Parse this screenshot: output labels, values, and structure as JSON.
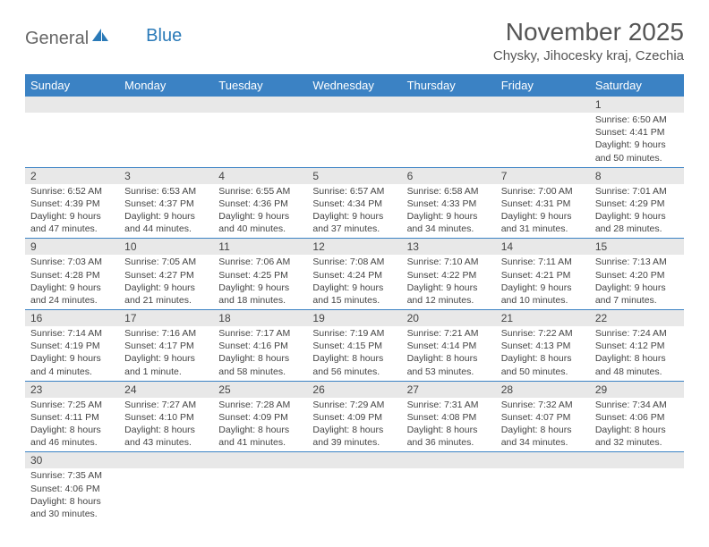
{
  "logo": {
    "general": "General",
    "blue": "Blue"
  },
  "title": "November 2025",
  "location": "Chysky, Jihocesky kraj, Czechia",
  "colors": {
    "header_bg": "#3b82c4",
    "header_text": "#ffffff",
    "daynum_bg": "#e8e8e8",
    "border": "#3b82c4",
    "text": "#444444"
  },
  "weekdays": [
    "Sunday",
    "Monday",
    "Tuesday",
    "Wednesday",
    "Thursday",
    "Friday",
    "Saturday"
  ],
  "weeks": [
    [
      null,
      null,
      null,
      null,
      null,
      null,
      {
        "n": "1",
        "sr": "Sunrise: 6:50 AM",
        "ss": "Sunset: 4:41 PM",
        "dl1": "Daylight: 9 hours",
        "dl2": "and 50 minutes."
      }
    ],
    [
      {
        "n": "2",
        "sr": "Sunrise: 6:52 AM",
        "ss": "Sunset: 4:39 PM",
        "dl1": "Daylight: 9 hours",
        "dl2": "and 47 minutes."
      },
      {
        "n": "3",
        "sr": "Sunrise: 6:53 AM",
        "ss": "Sunset: 4:37 PM",
        "dl1": "Daylight: 9 hours",
        "dl2": "and 44 minutes."
      },
      {
        "n": "4",
        "sr": "Sunrise: 6:55 AM",
        "ss": "Sunset: 4:36 PM",
        "dl1": "Daylight: 9 hours",
        "dl2": "and 40 minutes."
      },
      {
        "n": "5",
        "sr": "Sunrise: 6:57 AM",
        "ss": "Sunset: 4:34 PM",
        "dl1": "Daylight: 9 hours",
        "dl2": "and 37 minutes."
      },
      {
        "n": "6",
        "sr": "Sunrise: 6:58 AM",
        "ss": "Sunset: 4:33 PM",
        "dl1": "Daylight: 9 hours",
        "dl2": "and 34 minutes."
      },
      {
        "n": "7",
        "sr": "Sunrise: 7:00 AM",
        "ss": "Sunset: 4:31 PM",
        "dl1": "Daylight: 9 hours",
        "dl2": "and 31 minutes."
      },
      {
        "n": "8",
        "sr": "Sunrise: 7:01 AM",
        "ss": "Sunset: 4:29 PM",
        "dl1": "Daylight: 9 hours",
        "dl2": "and 28 minutes."
      }
    ],
    [
      {
        "n": "9",
        "sr": "Sunrise: 7:03 AM",
        "ss": "Sunset: 4:28 PM",
        "dl1": "Daylight: 9 hours",
        "dl2": "and 24 minutes."
      },
      {
        "n": "10",
        "sr": "Sunrise: 7:05 AM",
        "ss": "Sunset: 4:27 PM",
        "dl1": "Daylight: 9 hours",
        "dl2": "and 21 minutes."
      },
      {
        "n": "11",
        "sr": "Sunrise: 7:06 AM",
        "ss": "Sunset: 4:25 PM",
        "dl1": "Daylight: 9 hours",
        "dl2": "and 18 minutes."
      },
      {
        "n": "12",
        "sr": "Sunrise: 7:08 AM",
        "ss": "Sunset: 4:24 PM",
        "dl1": "Daylight: 9 hours",
        "dl2": "and 15 minutes."
      },
      {
        "n": "13",
        "sr": "Sunrise: 7:10 AM",
        "ss": "Sunset: 4:22 PM",
        "dl1": "Daylight: 9 hours",
        "dl2": "and 12 minutes."
      },
      {
        "n": "14",
        "sr": "Sunrise: 7:11 AM",
        "ss": "Sunset: 4:21 PM",
        "dl1": "Daylight: 9 hours",
        "dl2": "and 10 minutes."
      },
      {
        "n": "15",
        "sr": "Sunrise: 7:13 AM",
        "ss": "Sunset: 4:20 PM",
        "dl1": "Daylight: 9 hours",
        "dl2": "and 7 minutes."
      }
    ],
    [
      {
        "n": "16",
        "sr": "Sunrise: 7:14 AM",
        "ss": "Sunset: 4:19 PM",
        "dl1": "Daylight: 9 hours",
        "dl2": "and 4 minutes."
      },
      {
        "n": "17",
        "sr": "Sunrise: 7:16 AM",
        "ss": "Sunset: 4:17 PM",
        "dl1": "Daylight: 9 hours",
        "dl2": "and 1 minute."
      },
      {
        "n": "18",
        "sr": "Sunrise: 7:17 AM",
        "ss": "Sunset: 4:16 PM",
        "dl1": "Daylight: 8 hours",
        "dl2": "and 58 minutes."
      },
      {
        "n": "19",
        "sr": "Sunrise: 7:19 AM",
        "ss": "Sunset: 4:15 PM",
        "dl1": "Daylight: 8 hours",
        "dl2": "and 56 minutes."
      },
      {
        "n": "20",
        "sr": "Sunrise: 7:21 AM",
        "ss": "Sunset: 4:14 PM",
        "dl1": "Daylight: 8 hours",
        "dl2": "and 53 minutes."
      },
      {
        "n": "21",
        "sr": "Sunrise: 7:22 AM",
        "ss": "Sunset: 4:13 PM",
        "dl1": "Daylight: 8 hours",
        "dl2": "and 50 minutes."
      },
      {
        "n": "22",
        "sr": "Sunrise: 7:24 AM",
        "ss": "Sunset: 4:12 PM",
        "dl1": "Daylight: 8 hours",
        "dl2": "and 48 minutes."
      }
    ],
    [
      {
        "n": "23",
        "sr": "Sunrise: 7:25 AM",
        "ss": "Sunset: 4:11 PM",
        "dl1": "Daylight: 8 hours",
        "dl2": "and 46 minutes."
      },
      {
        "n": "24",
        "sr": "Sunrise: 7:27 AM",
        "ss": "Sunset: 4:10 PM",
        "dl1": "Daylight: 8 hours",
        "dl2": "and 43 minutes."
      },
      {
        "n": "25",
        "sr": "Sunrise: 7:28 AM",
        "ss": "Sunset: 4:09 PM",
        "dl1": "Daylight: 8 hours",
        "dl2": "and 41 minutes."
      },
      {
        "n": "26",
        "sr": "Sunrise: 7:29 AM",
        "ss": "Sunset: 4:09 PM",
        "dl1": "Daylight: 8 hours",
        "dl2": "and 39 minutes."
      },
      {
        "n": "27",
        "sr": "Sunrise: 7:31 AM",
        "ss": "Sunset: 4:08 PM",
        "dl1": "Daylight: 8 hours",
        "dl2": "and 36 minutes."
      },
      {
        "n": "28",
        "sr": "Sunrise: 7:32 AM",
        "ss": "Sunset: 4:07 PM",
        "dl1": "Daylight: 8 hours",
        "dl2": "and 34 minutes."
      },
      {
        "n": "29",
        "sr": "Sunrise: 7:34 AM",
        "ss": "Sunset: 4:06 PM",
        "dl1": "Daylight: 8 hours",
        "dl2": "and 32 minutes."
      }
    ],
    [
      {
        "n": "30",
        "sr": "Sunrise: 7:35 AM",
        "ss": "Sunset: 4:06 PM",
        "dl1": "Daylight: 8 hours",
        "dl2": "and 30 minutes."
      },
      null,
      null,
      null,
      null,
      null,
      null
    ]
  ]
}
